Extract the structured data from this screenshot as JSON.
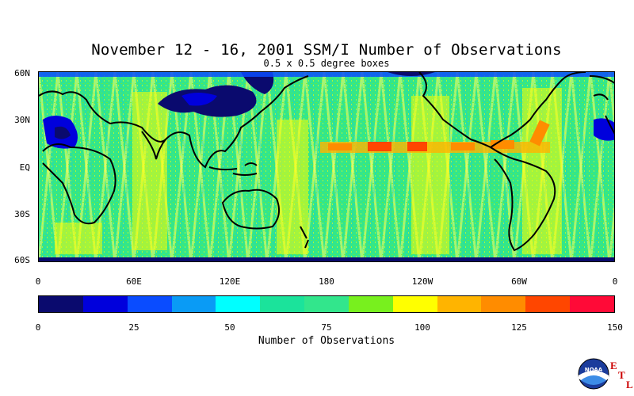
{
  "title": "November 12 - 16, 2001 SSM/I Number of Observations",
  "subtitle": "0.5 x 0.5 degree boxes",
  "map": {
    "lat_labels": [
      "60N",
      "30N",
      "EQ",
      "30S",
      "60S"
    ],
    "lon_labels": [
      "0",
      "60E",
      "120E",
      "180",
      "120W",
      "60W",
      "0"
    ]
  },
  "colorbar": {
    "colors": [
      "#0a0a6e",
      "#0000dc",
      "#0a4cff",
      "#0a9bf5",
      "#00ffff",
      "#1be39b",
      "#32e68c",
      "#78f01e",
      "#ffff00",
      "#ffb400",
      "#ff8c00",
      "#ff4600",
      "#ff0a37"
    ],
    "tick_labels": [
      "0",
      "25",
      "50",
      "75",
      "100",
      "125",
      "150"
    ],
    "title": "Number of Observations"
  },
  "logo": {
    "name": "noaa-logo",
    "text": "NOAA",
    "etl_letters": [
      "E",
      "T",
      "L"
    ]
  }
}
